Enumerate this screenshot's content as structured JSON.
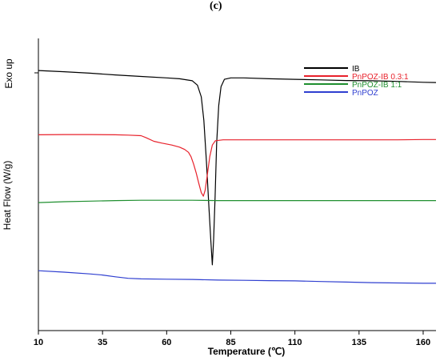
{
  "panel_label": "(c)",
  "chart_data": {
    "type": "line",
    "title": "",
    "xlabel": "Temperature (℃)",
    "ylabel": "Heat Flow (W/g)",
    "y_annotation": "Exo up",
    "xlim": [
      10,
      165
    ],
    "xticks": [
      10,
      35,
      60,
      85,
      110,
      135,
      160
    ],
    "y_ticks_labeled": false,
    "grid": false,
    "legend_position": "top-right",
    "series": [
      {
        "name": "IB",
        "color": "#000000",
        "points": [
          [
            10,
            8.9
          ],
          [
            20,
            8.86
          ],
          [
            30,
            8.81
          ],
          [
            40,
            8.75
          ],
          [
            50,
            8.7
          ],
          [
            60,
            8.65
          ],
          [
            65,
            8.62
          ],
          [
            70,
            8.55
          ],
          [
            72,
            8.4
          ],
          [
            73.5,
            8.0
          ],
          [
            74.5,
            7.2
          ],
          [
            75.5,
            5.8
          ],
          [
            76.5,
            4.2
          ],
          [
            77.2,
            3.1
          ],
          [
            77.8,
            2.25
          ],
          [
            78.3,
            3.1
          ],
          [
            78.9,
            4.6
          ],
          [
            79.5,
            6.4
          ],
          [
            80.3,
            7.7
          ],
          [
            81.2,
            8.35
          ],
          [
            82.5,
            8.6
          ],
          [
            85,
            8.65
          ],
          [
            90,
            8.65
          ],
          [
            100,
            8.62
          ],
          [
            110,
            8.6
          ],
          [
            120,
            8.58
          ],
          [
            130,
            8.56
          ],
          [
            140,
            8.55
          ],
          [
            150,
            8.53
          ],
          [
            160,
            8.5
          ],
          [
            165,
            8.49
          ]
        ]
      },
      {
        "name": "PnPOZ-IB 0.3:1",
        "color": "#e8212b",
        "points": [
          [
            10,
            6.7
          ],
          [
            20,
            6.71
          ],
          [
            30,
            6.71
          ],
          [
            40,
            6.7
          ],
          [
            45,
            6.69
          ],
          [
            50,
            6.67
          ],
          [
            52,
            6.6
          ],
          [
            55,
            6.48
          ],
          [
            58,
            6.42
          ],
          [
            62,
            6.35
          ],
          [
            65,
            6.28
          ],
          [
            67,
            6.2
          ],
          [
            68.5,
            6.1
          ],
          [
            69.5,
            5.95
          ],
          [
            70.5,
            5.7
          ],
          [
            71.5,
            5.4
          ],
          [
            72.5,
            5.05
          ],
          [
            73.5,
            4.72
          ],
          [
            74.3,
            4.6
          ],
          [
            75,
            4.8
          ],
          [
            75.8,
            5.3
          ],
          [
            76.8,
            5.95
          ],
          [
            77.8,
            6.35
          ],
          [
            79,
            6.5
          ],
          [
            82,
            6.53
          ],
          [
            90,
            6.53
          ],
          [
            100,
            6.53
          ],
          [
            110,
            6.53
          ],
          [
            120,
            6.53
          ],
          [
            130,
            6.53
          ],
          [
            140,
            6.53
          ],
          [
            150,
            6.53
          ],
          [
            160,
            6.54
          ],
          [
            165,
            6.54
          ]
        ]
      },
      {
        "name": "PnPOZ-IB 1:1",
        "color": "#1f8f2f",
        "points": [
          [
            10,
            4.38
          ],
          [
            20,
            4.41
          ],
          [
            30,
            4.43
          ],
          [
            40,
            4.45
          ],
          [
            50,
            4.46
          ],
          [
            60,
            4.46
          ],
          [
            70,
            4.46
          ],
          [
            80,
            4.45
          ],
          [
            90,
            4.45
          ],
          [
            100,
            4.45
          ],
          [
            110,
            4.45
          ],
          [
            120,
            4.45
          ],
          [
            130,
            4.45
          ],
          [
            140,
            4.45
          ],
          [
            150,
            4.45
          ],
          [
            160,
            4.45
          ],
          [
            165,
            4.45
          ]
        ]
      },
      {
        "name": "PnPOZ",
        "color": "#2f3fd0",
        "points": [
          [
            10,
            2.05
          ],
          [
            20,
            2.0
          ],
          [
            30,
            1.94
          ],
          [
            35,
            1.9
          ],
          [
            40,
            1.84
          ],
          [
            45,
            1.79
          ],
          [
            50,
            1.77
          ],
          [
            60,
            1.76
          ],
          [
            70,
            1.75
          ],
          [
            80,
            1.73
          ],
          [
            90,
            1.72
          ],
          [
            100,
            1.71
          ],
          [
            110,
            1.7
          ],
          [
            120,
            1.68
          ],
          [
            130,
            1.66
          ],
          [
            140,
            1.64
          ],
          [
            150,
            1.63
          ],
          [
            160,
            1.62
          ],
          [
            165,
            1.62
          ]
        ]
      }
    ]
  }
}
